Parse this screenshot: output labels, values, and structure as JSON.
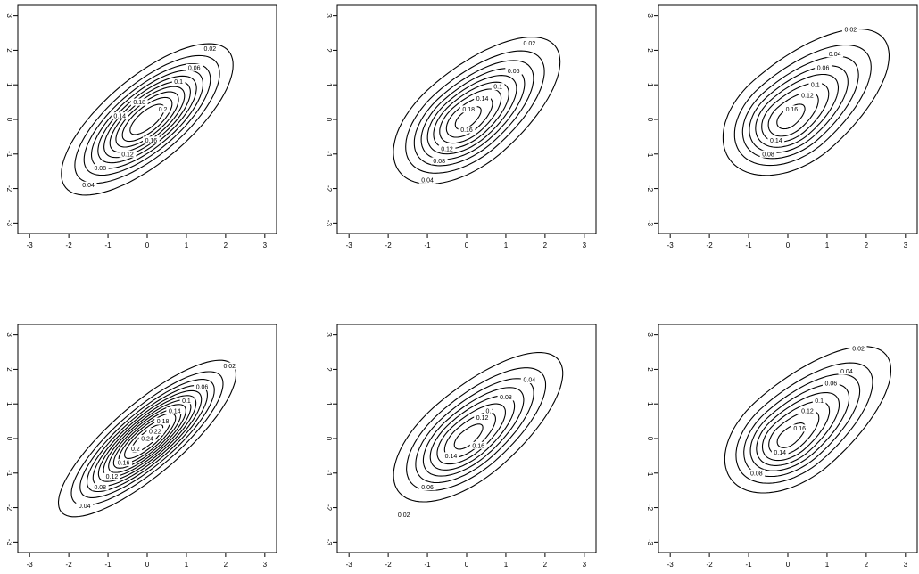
{
  "chart_data": {
    "type": "contour",
    "title": "",
    "xlim": [
      -3.3,
      3.3
    ],
    "ylim": [
      -3.3,
      3.3
    ],
    "x_ticks": [
      -3,
      -2,
      -1,
      0,
      1,
      2,
      3
    ],
    "y_ticks": [
      -3,
      -2,
      -1,
      0,
      1,
      2,
      3
    ],
    "x_tick_labels": [
      "-3",
      "-2",
      "-1",
      "0",
      "1",
      "2",
      "3"
    ],
    "y_tick_labels": [
      "-3",
      "-2",
      "-1",
      "0",
      "1",
      "2",
      "3"
    ],
    "grid": false,
    "legend": "none",
    "panels": [
      {
        "id": "panel-1",
        "levels": [
          0.02,
          0.04,
          0.06,
          0.08,
          0.1,
          0.12,
          0.14,
          0.16,
          0.18,
          0.2
        ],
        "labels": [
          {
            "text": "0.02",
            "x": 1.6,
            "y": 2.05
          },
          {
            "text": "0.04",
            "x": -1.5,
            "y": -1.9
          },
          {
            "text": "0.06",
            "x": 1.2,
            "y": 1.5
          },
          {
            "text": "0.08",
            "x": -1.2,
            "y": -1.4
          },
          {
            "text": "0.1",
            "x": 0.8,
            "y": 1.1
          },
          {
            "text": "0.12",
            "x": -0.5,
            "y": -1.0
          },
          {
            "text": "0.14",
            "x": -0.7,
            "y": 0.1
          },
          {
            "text": "0.16",
            "x": 0.1,
            "y": -0.6
          },
          {
            "text": "0.18",
            "x": -0.2,
            "y": 0.5
          },
          {
            "text": "0.2",
            "x": 0.4,
            "y": 0.3
          }
        ]
      },
      {
        "id": "panel-2",
        "levels": [
          0.02,
          0.04,
          0.06,
          0.08,
          0.1,
          0.12,
          0.14,
          0.16,
          0.18
        ],
        "labels": [
          {
            "text": "0.02",
            "x": 1.6,
            "y": 2.2
          },
          {
            "text": "0.04",
            "x": -1.0,
            "y": -1.75
          },
          {
            "text": "0.06",
            "x": 1.2,
            "y": 1.4
          },
          {
            "text": "0.08",
            "x": -0.7,
            "y": -1.2
          },
          {
            "text": "0.1",
            "x": 0.8,
            "y": 0.95
          },
          {
            "text": "0.12",
            "x": -0.5,
            "y": -0.85
          },
          {
            "text": "0.14",
            "x": 0.4,
            "y": 0.6
          },
          {
            "text": "0.16",
            "x": 0.0,
            "y": -0.3
          },
          {
            "text": "0.18",
            "x": 0.05,
            "y": 0.3
          }
        ]
      },
      {
        "id": "panel-3",
        "levels": [
          0.02,
          0.04,
          0.06,
          0.08,
          0.1,
          0.12,
          0.14,
          0.16
        ],
        "labels": [
          {
            "text": "0.02",
            "x": 1.6,
            "y": 2.6
          },
          {
            "text": "0.04",
            "x": 1.2,
            "y": 1.9
          },
          {
            "text": "0.06",
            "x": 0.9,
            "y": 1.5
          },
          {
            "text": "0.08",
            "x": -0.5,
            "y": -1.0
          },
          {
            "text": "0.1",
            "x": 0.7,
            "y": 1.0
          },
          {
            "text": "0.12",
            "x": 0.5,
            "y": 0.7
          },
          {
            "text": "0.14",
            "x": -0.3,
            "y": -0.6
          },
          {
            "text": "0.16",
            "x": 0.1,
            "y": 0.3
          }
        ]
      },
      {
        "id": "panel-4",
        "levels": [
          0.02,
          0.04,
          0.06,
          0.08,
          0.1,
          0.12,
          0.14,
          0.16,
          0.18,
          0.2,
          0.22,
          0.24
        ],
        "labels": [
          {
            "text": "0.02",
            "x": 2.1,
            "y": 2.1
          },
          {
            "text": "0.04",
            "x": -1.6,
            "y": -1.95
          },
          {
            "text": "0.06",
            "x": 1.4,
            "y": 1.5
          },
          {
            "text": "0.08",
            "x": -1.2,
            "y": -1.4
          },
          {
            "text": "0.1",
            "x": 1.0,
            "y": 1.1
          },
          {
            "text": "0.12",
            "x": -0.9,
            "y": -1.1
          },
          {
            "text": "0.14",
            "x": 0.7,
            "y": 0.8
          },
          {
            "text": "0.16",
            "x": -0.6,
            "y": -0.7
          },
          {
            "text": "0.18",
            "x": 0.4,
            "y": 0.5
          },
          {
            "text": "0.2",
            "x": -0.3,
            "y": -0.3
          },
          {
            "text": "0.22",
            "x": 0.2,
            "y": 0.2
          },
          {
            "text": "0.24",
            "x": 0.0,
            "y": 0.0
          }
        ]
      },
      {
        "id": "panel-5",
        "levels": [
          0.02,
          0.04,
          0.06,
          0.08,
          0.1,
          0.12,
          0.14,
          0.16
        ],
        "labels": [
          {
            "text": "0.02",
            "x": -1.6,
            "y": -2.2
          },
          {
            "text": "0.04",
            "x": 1.6,
            "y": 1.7
          },
          {
            "text": "0.06",
            "x": -1.0,
            "y": -1.4
          },
          {
            "text": "0.08",
            "x": 1.0,
            "y": 1.2
          },
          {
            "text": "0.1",
            "x": 0.6,
            "y": 0.8
          },
          {
            "text": "0.12",
            "x": 0.4,
            "y": 0.6
          },
          {
            "text": "0.14",
            "x": -0.4,
            "y": -0.5
          },
          {
            "text": "0.16",
            "x": 0.3,
            "y": -0.2
          }
        ]
      },
      {
        "id": "panel-6",
        "levels": [
          0.02,
          0.04,
          0.06,
          0.08,
          0.1,
          0.12,
          0.14,
          0.16
        ],
        "labels": [
          {
            "text": "0.02",
            "x": 1.8,
            "y": 2.6
          },
          {
            "text": "0.04",
            "x": 1.5,
            "y": 1.95
          },
          {
            "text": "0.06",
            "x": 1.1,
            "y": 1.6
          },
          {
            "text": "0.08",
            "x": -0.8,
            "y": -1.0
          },
          {
            "text": "0.1",
            "x": 0.8,
            "y": 1.1
          },
          {
            "text": "0.12",
            "x": 0.5,
            "y": 0.8
          },
          {
            "text": "0.14",
            "x": -0.2,
            "y": -0.4
          },
          {
            "text": "0.16",
            "x": 0.3,
            "y": 0.3
          }
        ]
      }
    ]
  }
}
